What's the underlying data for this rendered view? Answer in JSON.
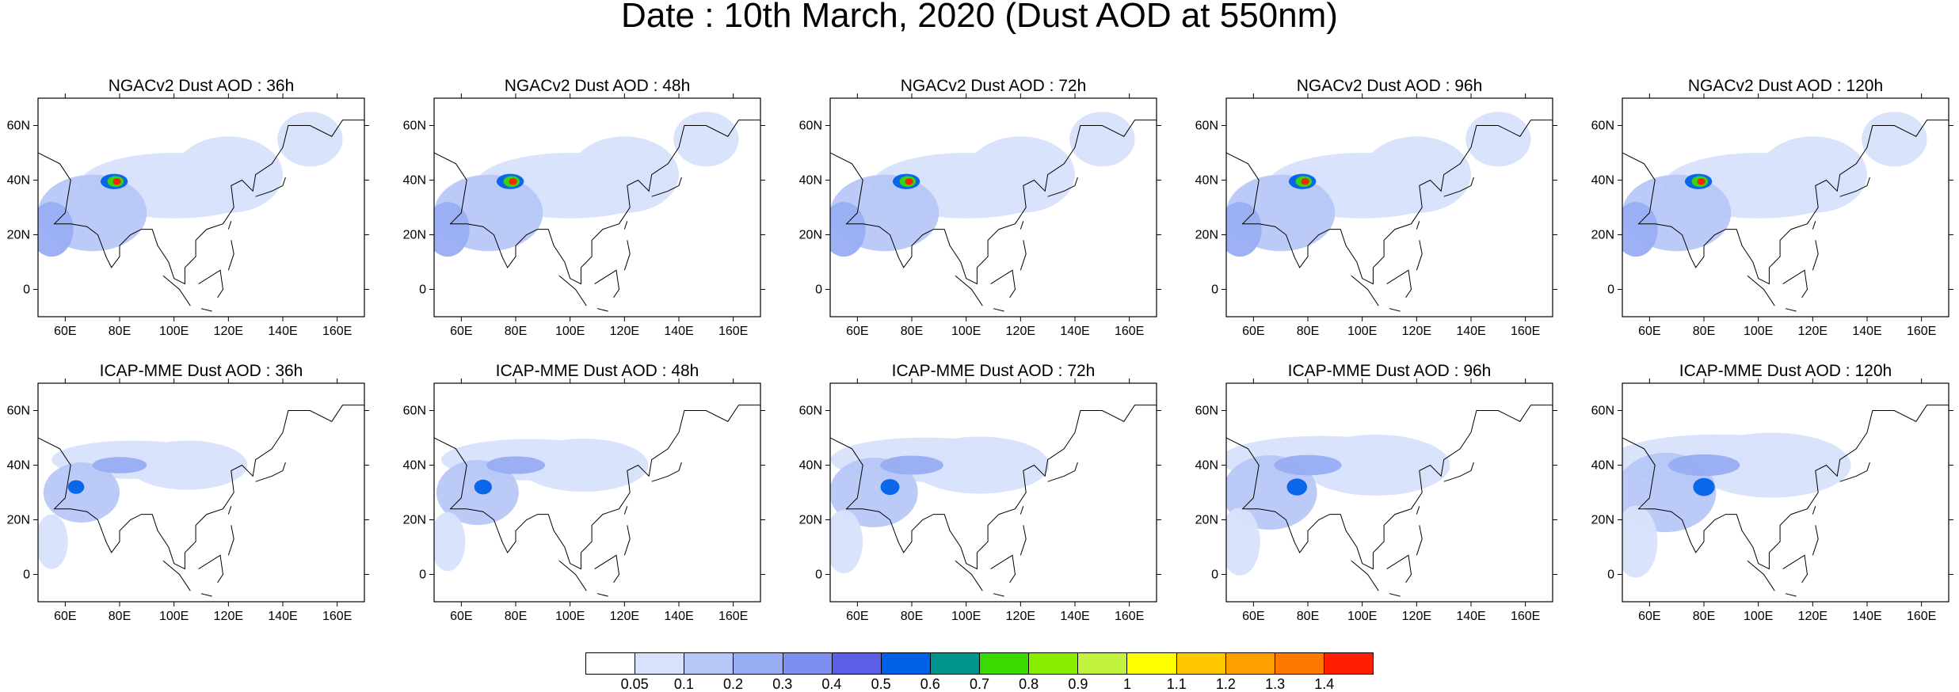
{
  "title": "Date : 10th March, 2020 (Dust AOD at 550nm)",
  "axes": {
    "lon_ticks": [
      "60E",
      "80E",
      "100E",
      "120E",
      "140E",
      "160E"
    ],
    "lat_ticks": [
      "60N",
      "40N",
      "20N",
      "0"
    ],
    "lon_values": [
      60,
      80,
      100,
      120,
      140,
      160
    ],
    "lat_values": [
      60,
      40,
      20,
      0
    ],
    "lon_range": [
      50,
      170
    ],
    "lat_range": [
      -10,
      70
    ]
  },
  "panels": [
    {
      "title": "NGACv2 Dust AOD : 36h",
      "model": "NGACv2",
      "lead": "36h"
    },
    {
      "title": "NGACv2 Dust AOD : 48h",
      "model": "NGACv2",
      "lead": "48h"
    },
    {
      "title": "NGACv2 Dust AOD : 72h",
      "model": "NGACv2",
      "lead": "72h"
    },
    {
      "title": "NGACv2 Dust AOD : 96h",
      "model": "NGACv2",
      "lead": "96h"
    },
    {
      "title": "NGACv2 Dust AOD : 120h",
      "model": "NGACv2",
      "lead": "120h"
    },
    {
      "title": "ICAP-MME Dust AOD : 36h",
      "model": "ICAP-MME",
      "lead": "36h"
    },
    {
      "title": "ICAP-MME Dust AOD : 48h",
      "model": "ICAP-MME",
      "lead": "48h"
    },
    {
      "title": "ICAP-MME Dust AOD : 72h",
      "model": "ICAP-MME",
      "lead": "72h"
    },
    {
      "title": "ICAP-MME Dust AOD : 96h",
      "model": "ICAP-MME",
      "lead": "96h"
    },
    {
      "title": "ICAP-MME Dust AOD : 120h",
      "model": "ICAP-MME",
      "lead": "120h"
    }
  ],
  "colorbar": {
    "labels": [
      "0.05",
      "0.1",
      "0.2",
      "0.3",
      "0.4",
      "0.5",
      "0.6",
      "0.7",
      "0.8",
      "0.9",
      "1",
      "1.1",
      "1.2",
      "1.3",
      "1.4"
    ],
    "colors": [
      "#ffffff",
      "#d8e2fc",
      "#b7c7f7",
      "#98adf3",
      "#7d90ef",
      "#5c5ee6",
      "#0061e8",
      "#00948d",
      "#3ad900",
      "#8aed00",
      "#c1f23d",
      "#ffff00",
      "#ffc800",
      "#ffa000",
      "#ff7800",
      "#ff1e00"
    ]
  }
}
